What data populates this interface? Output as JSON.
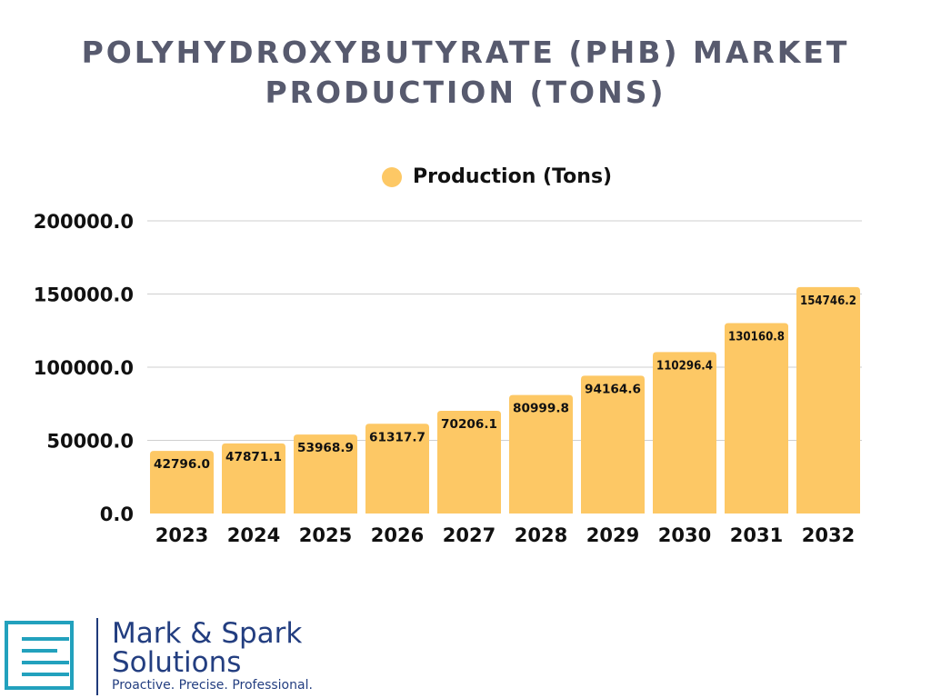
{
  "chart_data": {
    "type": "bar",
    "title": "POLYHYDROXYBUTYRATE (PHB) MARKET PRODUCTION (TONS)",
    "title_lines": [
      "POLYHYDROXYBUTYRATE (PHB) MARKET",
      "PRODUCTION (TONS)"
    ],
    "categories": [
      "2023",
      "2024",
      "2025",
      "2026",
      "2027",
      "2028",
      "2029",
      "2030",
      "2031",
      "2032"
    ],
    "series": [
      {
        "name": "Production (Tons)",
        "values": [
          42796.0,
          47871.1,
          53968.9,
          61317.7,
          70206.1,
          80999.8,
          94164.6,
          110296.4,
          130160.8,
          154746.2
        ],
        "color": "#fdc865"
      }
    ],
    "data_labels": [
      "42796.0",
      "47871.1",
      "53968.9",
      "61317.7",
      "70206.1",
      "80999.8",
      "94164.6",
      "110296.4",
      "130160.8",
      "154746.2"
    ],
    "yticks": [
      0,
      50000,
      100000,
      150000,
      200000
    ],
    "ytick_labels": [
      "0.0",
      "50000.0",
      "100000.0",
      "150000.0",
      "200000.0"
    ],
    "ylim": [
      0,
      200000
    ],
    "xlabel": "",
    "ylabel": "",
    "grid": true,
    "legend": "top-center"
  },
  "logo": {
    "name_line1": "Mark & Spark",
    "name_line2": "Solutions",
    "tagline": "Proactive. Precise. Professional."
  }
}
